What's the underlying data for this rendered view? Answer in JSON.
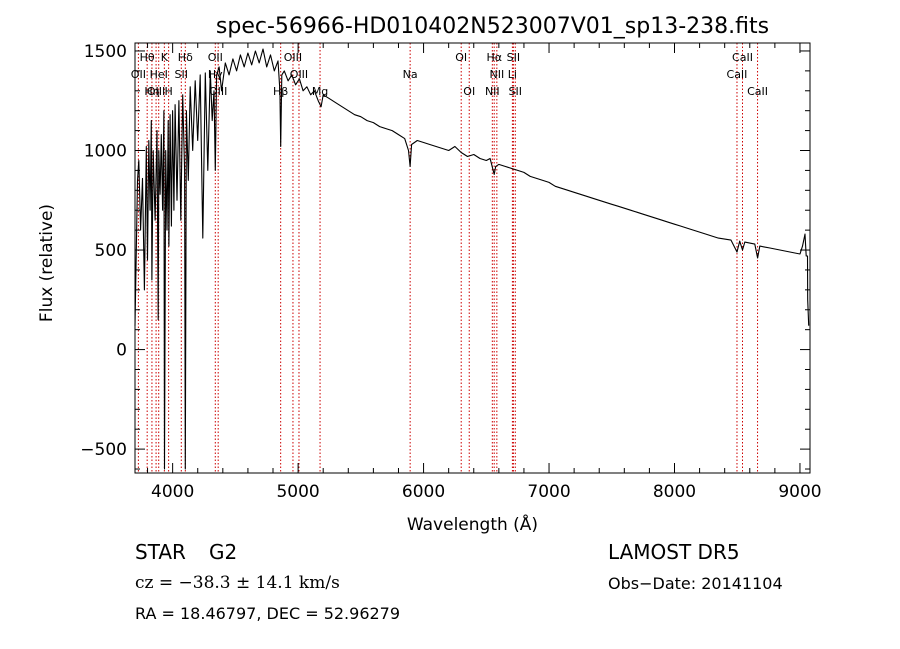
{
  "chart_data": {
    "type": "line",
    "title": "spec-56966-HD010402N523007V01_sp13-238.fits",
    "xlabel": "Wavelength (Å)",
    "ylabel": "Flux (relative)",
    "xlim": [
      3700,
      9080
    ],
    "ylim": [
      -620,
      1540
    ],
    "xticks": [
      4000,
      5000,
      6000,
      7000,
      8000,
      9000
    ],
    "yticks": [
      -500,
      0,
      500,
      1000,
      1500
    ],
    "grid": false,
    "series": [
      {
        "x": [
          3700,
          3710,
          3720,
          3730,
          3745,
          3760,
          3775,
          3790,
          3800,
          3810,
          3820,
          3830,
          3835,
          3845,
          3860,
          3875,
          3885,
          3890,
          3900,
          3910,
          3920,
          3930,
          3935,
          3945,
          3955,
          3965,
          3970,
          3980,
          3990,
          4000,
          4010,
          4020,
          4035,
          4050,
          4065,
          4080,
          4095,
          4101,
          4110,
          4125,
          4140,
          4160,
          4180,
          4200,
          4220,
          4240,
          4260,
          4280,
          4300,
          4315,
          4330,
          4340,
          4350,
          4370,
          4390,
          4420,
          4450,
          4480,
          4510,
          4540,
          4570,
          4600,
          4630,
          4660,
          4690,
          4720,
          4750,
          4780,
          4810,
          4840,
          4855,
          4861,
          4870,
          4890,
          4920,
          4950,
          4980,
          5010,
          5040,
          5070,
          5100,
          5130,
          5160,
          5183,
          5200,
          5250,
          5300,
          5350,
          5400,
          5450,
          5500,
          5550,
          5600,
          5650,
          5700,
          5750,
          5800,
          5850,
          5880,
          5893,
          5905,
          5950,
          6000,
          6050,
          6100,
          6150,
          6200,
          6250,
          6300,
          6350,
          6400,
          6450,
          6500,
          6530,
          6563,
          6575,
          6600,
          6650,
          6700,
          6750,
          6800,
          6850,
          6900,
          6950,
          7000,
          7050,
          7100,
          7150,
          7200,
          7250,
          7300,
          7350,
          7400,
          7450,
          7500,
          7550,
          7600,
          7650,
          7700,
          7750,
          7800,
          7850,
          7900,
          7950,
          8000,
          8050,
          8100,
          8150,
          8200,
          8250,
          8300,
          8350,
          8400,
          8450,
          8498,
          8520,
          8542,
          8560,
          8600,
          8640,
          8662,
          8680,
          8720,
          8760,
          8800,
          8840,
          8880,
          8920,
          8960,
          9000,
          9020,
          9040,
          9050,
          9060,
          9062,
          9070
        ],
        "y": [
          120,
          500,
          850,
          950,
          600,
          860,
          300,
          1020,
          450,
          1050,
          700,
          1150,
          350,
          1000,
          650,
          1100,
          150,
          1000,
          780,
          1080,
          700,
          1200,
          -600,
          1000,
          600,
          1150,
          520,
          1180,
          620,
          1200,
          700,
          1230,
          750,
          1250,
          650,
          1280,
          900,
          -600,
          1200,
          850,
          1320,
          1000,
          1350,
          1050,
          1380,
          560,
          1390,
          900,
          1400,
          1150,
          1300,
          900,
          1380,
          1420,
          1300,
          1440,
          1380,
          1460,
          1400,
          1480,
          1420,
          1490,
          1430,
          1500,
          1440,
          1510,
          1420,
          1480,
          1400,
          1450,
          1300,
          1020,
          1380,
          1400,
          1350,
          1380,
          1330,
          1360,
          1300,
          1320,
          1280,
          1300,
          1250,
          1220,
          1280,
          1260,
          1240,
          1220,
          1200,
          1180,
          1170,
          1150,
          1140,
          1120,
          1110,
          1100,
          1080,
          1060,
          1000,
          920,
          1030,
          1050,
          1040,
          1030,
          1020,
          1010,
          1000,
          1020,
          990,
          970,
          980,
          960,
          950,
          960,
          880,
          920,
          930,
          920,
          910,
          900,
          890,
          870,
          860,
          850,
          840,
          820,
          810,
          800,
          790,
          780,
          770,
          760,
          750,
          740,
          730,
          720,
          710,
          700,
          690,
          680,
          670,
          660,
          650,
          640,
          630,
          620,
          610,
          600,
          590,
          580,
          570,
          560,
          555,
          550,
          490,
          545,
          500,
          540,
          535,
          530,
          460,
          520,
          515,
          510,
          505,
          500,
          495,
          490,
          485,
          480,
          520,
          580,
          470,
          470,
          250,
          120
        ]
      }
    ],
    "line_labels": [
      {
        "label": "Hθ",
        "x": 3797,
        "row": 1
      },
      {
        "label": "K",
        "x": 3934,
        "row": 1
      },
      {
        "label": "Hδ",
        "x": 4101,
        "row": 1
      },
      {
        "label": "OII",
        "x": 4340,
        "row": 1
      },
      {
        "label": "OIII",
        "x": 4959,
        "row": 1
      },
      {
        "label": "OI",
        "x": 6300,
        "row": 1
      },
      {
        "label": "Hα",
        "x": 6563,
        "row": 1
      },
      {
        "label": "SII",
        "x": 6716,
        "row": 1
      },
      {
        "label": "CaII",
        "x": 8542,
        "row": 1
      },
      {
        "label": "OII",
        "x": 3727,
        "row": 2
      },
      {
        "label": "HeI",
        "x": 3889,
        "row": 2
      },
      {
        "label": "SII",
        "x": 4069,
        "row": 2
      },
      {
        "label": "Hγ",
        "x": 4340,
        "row": 2
      },
      {
        "label": "OIII",
        "x": 5007,
        "row": 2
      },
      {
        "label": "Na",
        "x": 5893,
        "row": 2
      },
      {
        "label": "NII",
        "x": 6584,
        "row": 2
      },
      {
        "label": "Li",
        "x": 6708,
        "row": 2
      },
      {
        "label": "CaII",
        "x": 8498,
        "row": 2
      },
      {
        "label": "OIII",
        "x": 3868,
        "row": 3
      },
      {
        "label": "Hη",
        "x": 3835,
        "row": 3
      },
      {
        "label": "H",
        "x": 3968,
        "row": 3
      },
      {
        "label": "OIII",
        "x": 4363,
        "row": 3
      },
      {
        "label": "Hβ",
        "x": 4861,
        "row": 3
      },
      {
        "label": "Mg",
        "x": 5175,
        "row": 3
      },
      {
        "label": "OI",
        "x": 6364,
        "row": 3
      },
      {
        "label": "NII",
        "x": 6548,
        "row": 3
      },
      {
        "label": "SII",
        "x": 6731,
        "row": 3
      },
      {
        "label": "CaII",
        "x": 8662,
        "row": 3
      }
    ],
    "marker_lines": [
      3727,
      3797,
      3835,
      3868,
      3889,
      3934,
      3968,
      4069,
      4101,
      4340,
      4363,
      4861,
      4959,
      5007,
      5175,
      5893,
      6300,
      6364,
      6548,
      6563,
      6584,
      6708,
      6716,
      6731,
      8498,
      8542,
      8662
    ],
    "line_color": "#000000",
    "marker_color": "#cc0000"
  },
  "info": {
    "object_type": "STAR",
    "subclass": "G2",
    "survey": "LAMOST DR5",
    "cz": "cz = −38.3 ± 14.1 km/s",
    "obs_date": "Obs−Date: 20141104",
    "coords": "RA =  18.46797, DEC =  52.96279"
  }
}
